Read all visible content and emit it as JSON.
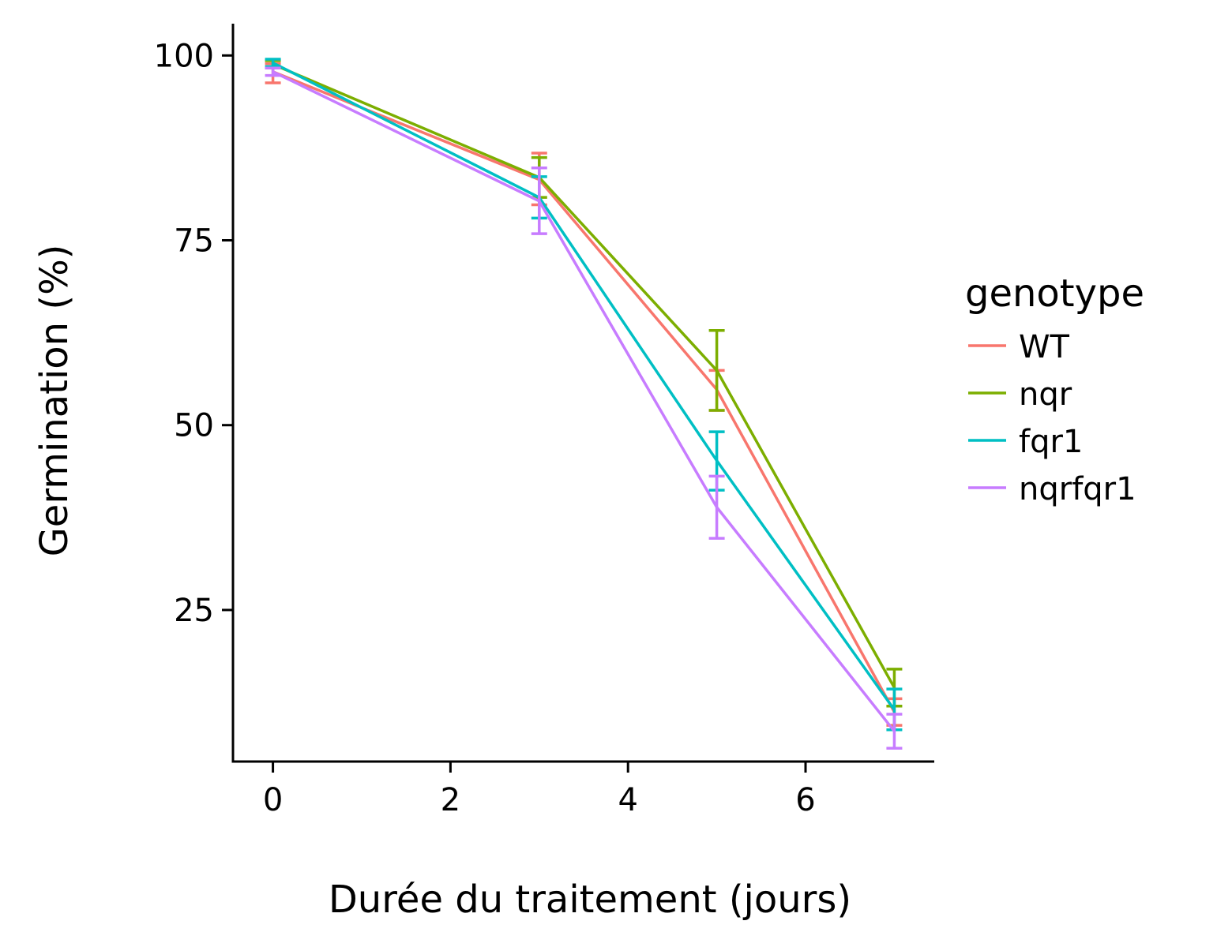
{
  "chart_data": {
    "type": "line",
    "xlabel": "Durée du traitement (jours)",
    "ylabel": "Germination (%)",
    "xlim": [
      -0.45,
      7.45
    ],
    "ylim": [
      4.5,
      104.3
    ],
    "x_ticks": [
      0,
      2,
      4,
      6
    ],
    "y_ticks": [
      25,
      50,
      75,
      100
    ],
    "grid": false,
    "legend": {
      "title": "genotype",
      "position": "right"
    },
    "x": [
      0,
      3,
      5,
      7
    ],
    "series": [
      {
        "name": "WT",
        "color": "#F8766D",
        "values": [
          97.8,
          83.2,
          54.8,
          11.2
        ],
        "err_low": [
          96.3,
          79.8,
          52.0,
          9.4
        ],
        "err_high": [
          98.9,
          86.8,
          57.4,
          13.0
        ]
      },
      {
        "name": "nqr",
        "color": "#7CAE00",
        "values": [
          98.8,
          83.5,
          57.4,
          14.5
        ],
        "err_low": [
          98.3,
          80.8,
          52.0,
          12.0
        ],
        "err_high": [
          99.3,
          86.2,
          62.8,
          17.0
        ]
      },
      {
        "name": "fqr1",
        "color": "#00BFC4",
        "values": [
          99.0,
          80.8,
          45.2,
          11.5
        ],
        "err_low": [
          98.5,
          78.0,
          41.2,
          8.8
        ],
        "err_high": [
          99.5,
          83.6,
          49.1,
          14.3
        ]
      },
      {
        "name": "nqrfqr1",
        "color": "#C77CFF",
        "values": [
          97.8,
          80.3,
          38.9,
          8.6
        ],
        "err_low": [
          97.3,
          75.9,
          34.7,
          6.3
        ],
        "err_high": [
          98.3,
          84.8,
          43.1,
          10.9
        ]
      }
    ]
  }
}
